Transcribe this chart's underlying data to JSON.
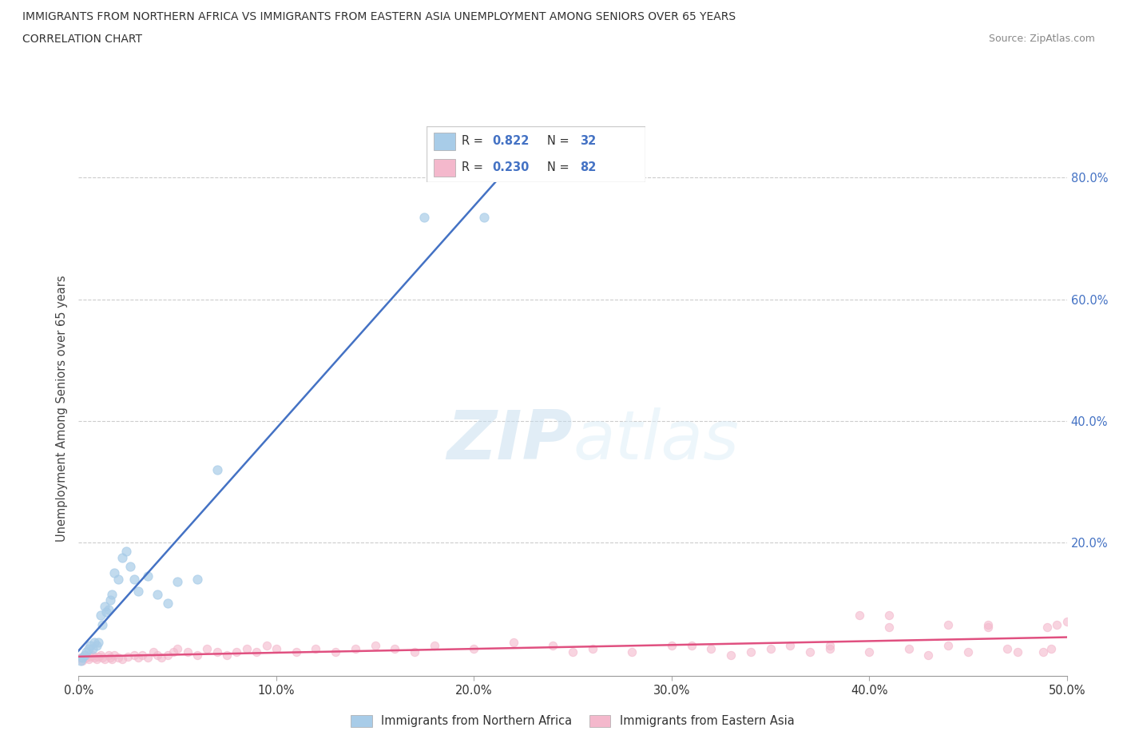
{
  "title_line1": "IMMIGRANTS FROM NORTHERN AFRICA VS IMMIGRANTS FROM EASTERN ASIA UNEMPLOYMENT AMONG SENIORS OVER 65 YEARS",
  "title_line2": "CORRELATION CHART",
  "source": "Source: ZipAtlas.com",
  "ylabel": "Unemployment Among Seniors over 65 years",
  "watermark_zip": "ZIP",
  "watermark_atlas": "atlas",
  "legend1_label": "Immigrants from Northern Africa",
  "legend2_label": "Immigrants from Eastern Asia",
  "R1": "0.822",
  "N1": "32",
  "R2": "0.230",
  "N2": "82",
  "color_blue": "#a8cce8",
  "color_pink": "#f4b8cc",
  "color_blue_line": "#4472c4",
  "color_pink_line": "#e05080",
  "color_blue_text": "#4472c4",
  "xmin": 0.0,
  "xmax": 0.5,
  "ymin": -0.02,
  "ymax": 0.86,
  "xticks": [
    0.0,
    0.1,
    0.2,
    0.3,
    0.4,
    0.5
  ],
  "yticks_right": [
    0.2,
    0.4,
    0.6,
    0.8
  ],
  "yticks_grid": [
    0.2,
    0.4,
    0.6,
    0.8
  ],
  "blue_x": [
    0.001,
    0.002,
    0.003,
    0.004,
    0.005,
    0.006,
    0.007,
    0.008,
    0.009,
    0.01,
    0.011,
    0.012,
    0.013,
    0.014,
    0.015,
    0.016,
    0.017,
    0.018,
    0.02,
    0.022,
    0.024,
    0.026,
    0.028,
    0.03,
    0.035,
    0.04,
    0.045,
    0.05,
    0.06,
    0.07,
    0.175,
    0.205
  ],
  "blue_y": [
    0.005,
    0.01,
    0.015,
    0.02,
    0.025,
    0.03,
    0.025,
    0.035,
    0.03,
    0.035,
    0.08,
    0.065,
    0.095,
    0.085,
    0.09,
    0.105,
    0.115,
    0.15,
    0.14,
    0.175,
    0.185,
    0.16,
    0.14,
    0.12,
    0.145,
    0.115,
    0.1,
    0.135,
    0.14,
    0.32,
    0.735,
    0.735
  ],
  "pink_x": [
    0.001,
    0.002,
    0.003,
    0.004,
    0.005,
    0.006,
    0.007,
    0.008,
    0.009,
    0.01,
    0.011,
    0.012,
    0.013,
    0.015,
    0.016,
    0.017,
    0.018,
    0.02,
    0.022,
    0.025,
    0.028,
    0.03,
    0.032,
    0.035,
    0.038,
    0.04,
    0.042,
    0.045,
    0.048,
    0.05,
    0.055,
    0.06,
    0.065,
    0.07,
    0.075,
    0.08,
    0.085,
    0.09,
    0.095,
    0.1,
    0.11,
    0.12,
    0.13,
    0.14,
    0.15,
    0.16,
    0.17,
    0.18,
    0.2,
    0.22,
    0.24,
    0.26,
    0.28,
    0.3,
    0.32,
    0.34,
    0.36,
    0.38,
    0.4,
    0.42,
    0.44,
    0.46,
    0.25,
    0.31,
    0.35,
    0.38,
    0.41,
    0.43,
    0.45,
    0.47,
    0.49,
    0.495,
    0.5,
    0.44,
    0.46,
    0.475,
    0.488,
    0.492,
    0.33,
    0.37,
    0.395,
    0.41
  ],
  "pink_y": [
    0.01,
    0.005,
    0.015,
    0.01,
    0.008,
    0.012,
    0.015,
    0.01,
    0.008,
    0.012,
    0.015,
    0.01,
    0.008,
    0.015,
    0.01,
    0.008,
    0.015,
    0.01,
    0.008,
    0.012,
    0.015,
    0.01,
    0.015,
    0.01,
    0.02,
    0.015,
    0.01,
    0.015,
    0.02,
    0.025,
    0.02,
    0.015,
    0.025,
    0.02,
    0.015,
    0.02,
    0.025,
    0.02,
    0.03,
    0.025,
    0.02,
    0.025,
    0.02,
    0.025,
    0.03,
    0.025,
    0.02,
    0.03,
    0.025,
    0.035,
    0.03,
    0.025,
    0.02,
    0.03,
    0.025,
    0.02,
    0.03,
    0.025,
    0.02,
    0.025,
    0.03,
    0.065,
    0.02,
    0.03,
    0.025,
    0.03,
    0.06,
    0.015,
    0.02,
    0.025,
    0.06,
    0.065,
    0.07,
    0.065,
    0.06,
    0.02,
    0.02,
    0.025,
    0.015,
    0.02,
    0.08,
    0.08
  ]
}
